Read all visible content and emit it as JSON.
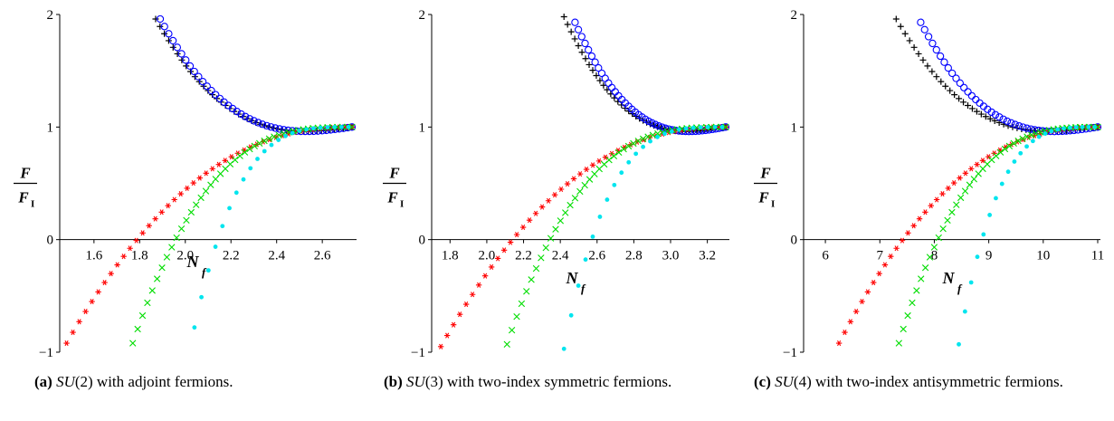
{
  "captions": [
    {
      "tag": "(a)",
      "group": "SU",
      "rest": "(2) with adjoint fermions."
    },
    {
      "tag": "(b)",
      "group": "SU",
      "rest": "(3) with two-index symmetric fermions."
    },
    {
      "tag": "(c)",
      "group": "SU",
      "rest": "(4) with two-index antisymmetric fermions."
    }
  ],
  "ylabel": {
    "num": "F",
    "den": "F",
    "den_sub": "I"
  },
  "xlabel": {
    "main": "N",
    "sub": "f"
  },
  "colors": {
    "plus": "#000000",
    "circle": "#0000ff",
    "star": "#ff0000",
    "cross": "#00dd00",
    "dot": "#00e5ee"
  },
  "chart_data": [
    {
      "type": "scatter",
      "ylim": [
        -1,
        2
      ],
      "xlim": [
        1.45,
        2.75
      ],
      "yticks": [
        -1,
        0,
        1,
        2
      ],
      "xticks": [
        1.6,
        1.8,
        2.0,
        2.2,
        2.4,
        2.6
      ],
      "xtick_labels": [
        "1.6",
        "1.8",
        "2.0",
        "2.2",
        "2.4",
        "2.6"
      ],
      "xmax": 2.73,
      "series": [
        {
          "marker": "plus",
          "x0": 1.87,
          "y0": 1.96
        },
        {
          "marker": "circle",
          "x0": 1.89,
          "y0": 1.96
        },
        {
          "marker": "star",
          "x0": 1.48,
          "y0": -0.92
        },
        {
          "marker": "cross",
          "x0": 1.77,
          "y0": -0.92
        },
        {
          "marker": "dot",
          "x0": 2.04,
          "y0": -0.78
        }
      ]
    },
    {
      "type": "scatter",
      "ylim": [
        -1,
        2
      ],
      "xlim": [
        1.7,
        3.32
      ],
      "yticks": [
        -1,
        0,
        1,
        2
      ],
      "xticks": [
        1.8,
        2.0,
        2.2,
        2.4,
        2.6,
        2.8,
        3.0,
        3.2
      ],
      "xtick_labels": [
        "1.8",
        "2.0",
        "2.2",
        "2.4",
        "2.6",
        "2.8",
        "3.0",
        "3.2"
      ],
      "xmax": 3.3,
      "series": [
        {
          "marker": "plus",
          "x0": 2.42,
          "y0": 1.98
        },
        {
          "marker": "circle",
          "x0": 2.48,
          "y0": 1.93
        },
        {
          "marker": "star",
          "x0": 1.75,
          "y0": -0.95
        },
        {
          "marker": "cross",
          "x0": 2.11,
          "y0": -0.93
        },
        {
          "marker": "dot",
          "x0": 2.42,
          "y0": -0.97
        }
      ]
    },
    {
      "type": "scatter",
      "ylim": [
        -1,
        2
      ],
      "xlim": [
        5.6,
        11.05
      ],
      "yticks": [
        -1,
        0,
        1,
        2
      ],
      "xticks": [
        6,
        7,
        8,
        9,
        10,
        11
      ],
      "xtick_labels": [
        "6",
        "7",
        "8",
        "9",
        "10",
        "11"
      ],
      "xmax": 11,
      "series": [
        {
          "marker": "plus",
          "x0": 7.3,
          "y0": 1.96
        },
        {
          "marker": "circle",
          "x0": 7.75,
          "y0": 1.93
        },
        {
          "marker": "star",
          "x0": 6.25,
          "y0": -0.92
        },
        {
          "marker": "cross",
          "x0": 7.35,
          "y0": -0.92
        },
        {
          "marker": "dot",
          "x0": 8.45,
          "y0": -0.93
        }
      ]
    }
  ]
}
